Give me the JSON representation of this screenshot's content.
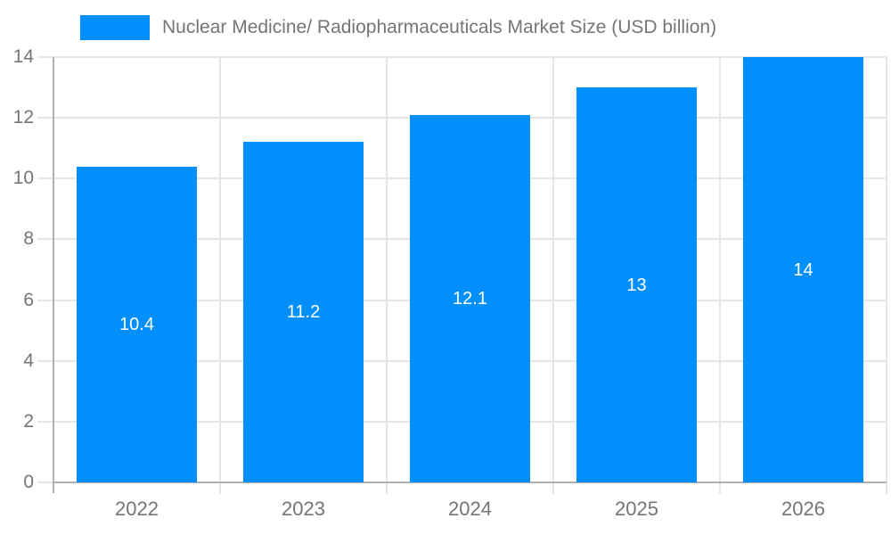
{
  "chart_data": {
    "type": "bar",
    "title": "Nuclear Medicine/ Radiopharmaceuticals Market Size (USD billion)",
    "categories": [
      "2022",
      "2023",
      "2024",
      "2025",
      "2026"
    ],
    "values": [
      10.4,
      11.2,
      12.1,
      13,
      14
    ],
    "value_labels": [
      "10.4",
      "11.2",
      "12.1",
      "13",
      "14"
    ],
    "xlabel": "",
    "ylabel": "",
    "ylim": [
      0,
      14
    ],
    "yticks": [
      0,
      2,
      4,
      6,
      8,
      10,
      12,
      14
    ],
    "grid": "horizontal gridlines at y-ticks, vertical gridlines at category boundaries",
    "legend_position": "top-left",
    "colors": {
      "bar": "#008FFB",
      "label_text": "#757575",
      "bar_value_text": "#FFFFFF",
      "gridline": "#E6E6E6",
      "axis_line": "#B0B0B0",
      "background": "#FFFFFF"
    }
  }
}
